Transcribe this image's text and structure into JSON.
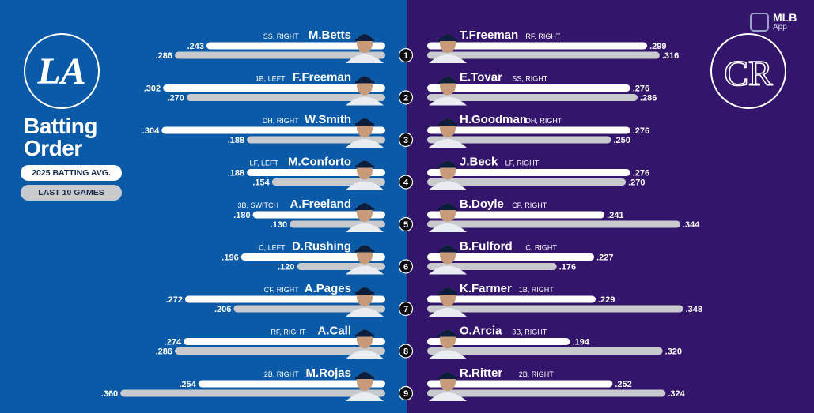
{
  "header": {
    "title_line1": "Batting",
    "title_line2": "Order",
    "legend_season": "2025 BATTING AVG.",
    "legend_last10": "LAST 10 GAMES",
    "app_line1": "MLB",
    "app_line2": "App"
  },
  "logos": {
    "left": "LA",
    "right": "CR"
  },
  "colors": {
    "left_bg": "#0a5aa8",
    "right_bg": "#33166b",
    "season_bar": "#ffffff",
    "last10_bar": "#c8cacd"
  },
  "chart_data": {
    "type": "bar",
    "orientation": "horizontal-mirrored",
    "orders": [
      "1",
      "2",
      "3",
      "4",
      "5",
      "6",
      "7",
      "8",
      "9"
    ],
    "series_legend": [
      "2025 BATTING AVG.",
      "LAST 10 GAMES"
    ],
    "teams": [
      {
        "side": "left",
        "players": [
          {
            "order": "1",
            "name": "M.Betts",
            "pos": "SS, RIGHT",
            "avg": ".243",
            "avg_val": 0.243,
            "last10": ".286",
            "last10_val": 0.286
          },
          {
            "order": "2",
            "name": "F.Freeman",
            "pos": "1B, LEFT",
            "avg": ".302",
            "avg_val": 0.302,
            "last10": ".270",
            "last10_val": 0.27
          },
          {
            "order": "3",
            "name": "W.Smith",
            "pos": "DH, RIGHT",
            "avg": ".304",
            "avg_val": 0.304,
            "last10": ".188",
            "last10_val": 0.188
          },
          {
            "order": "4",
            "name": "M.Conforto",
            "pos": "LF, LEFT",
            "avg": ".188",
            "avg_val": 0.188,
            "last10": ".154",
            "last10_val": 0.154
          },
          {
            "order": "5",
            "name": "A.Freeland",
            "pos": "3B, SWITCH",
            "avg": ".180",
            "avg_val": 0.18,
            "last10": ".130",
            "last10_val": 0.13
          },
          {
            "order": "6",
            "name": "D.Rushing",
            "pos": "C, LEFT",
            "avg": ".196",
            "avg_val": 0.196,
            "last10": ".120",
            "last10_val": 0.12
          },
          {
            "order": "7",
            "name": "A.Pages",
            "pos": "CF, RIGHT",
            "avg": ".272",
            "avg_val": 0.272,
            "last10": ".206",
            "last10_val": 0.206
          },
          {
            "order": "8",
            "name": "A.Call",
            "pos": "RF, RIGHT",
            "avg": ".274",
            "avg_val": 0.274,
            "last10": ".286",
            "last10_val": 0.286
          },
          {
            "order": "9",
            "name": "M.Rojas",
            "pos": "2B, RIGHT",
            "avg": ".254",
            "avg_val": 0.254,
            "last10": ".360",
            "last10_val": 0.36
          }
        ]
      },
      {
        "side": "right",
        "players": [
          {
            "order": "1",
            "name": "T.Freeman",
            "pos": "RF, RIGHT",
            "avg": ".299",
            "avg_val": 0.299,
            "last10": ".316",
            "last10_val": 0.316
          },
          {
            "order": "2",
            "name": "E.Tovar",
            "pos": "SS, RIGHT",
            "avg": ".276",
            "avg_val": 0.276,
            "last10": ".286",
            "last10_val": 0.286
          },
          {
            "order": "3",
            "name": "H.Goodman",
            "pos": "DH, RIGHT",
            "avg": ".276",
            "avg_val": 0.276,
            "last10": ".250",
            "last10_val": 0.25
          },
          {
            "order": "4",
            "name": "J.Beck",
            "pos": "LF, RIGHT",
            "avg": ".276",
            "avg_val": 0.276,
            "last10": ".270",
            "last10_val": 0.27
          },
          {
            "order": "5",
            "name": "B.Doyle",
            "pos": "CF, RIGHT",
            "avg": ".241",
            "avg_val": 0.241,
            "last10": ".344",
            "last10_val": 0.344
          },
          {
            "order": "6",
            "name": "B.Fulford",
            "pos": "C, RIGHT",
            "avg": ".227",
            "avg_val": 0.227,
            "last10": ".176",
            "last10_val": 0.176
          },
          {
            "order": "7",
            "name": "K.Farmer",
            "pos": "1B, RIGHT",
            "avg": ".229",
            "avg_val": 0.229,
            "last10": ".348",
            "last10_val": 0.348
          },
          {
            "order": "8",
            "name": "O.Arcia",
            "pos": "3B, RIGHT",
            "avg": ".194",
            "avg_val": 0.194,
            "last10": ".320",
            "last10_val": 0.32
          },
          {
            "order": "9",
            "name": "R.Ritter",
            "pos": "2B, RIGHT",
            "avg": ".252",
            "avg_val": 0.252,
            "last10": ".324",
            "last10_val": 0.324
          }
        ]
      }
    ]
  }
}
